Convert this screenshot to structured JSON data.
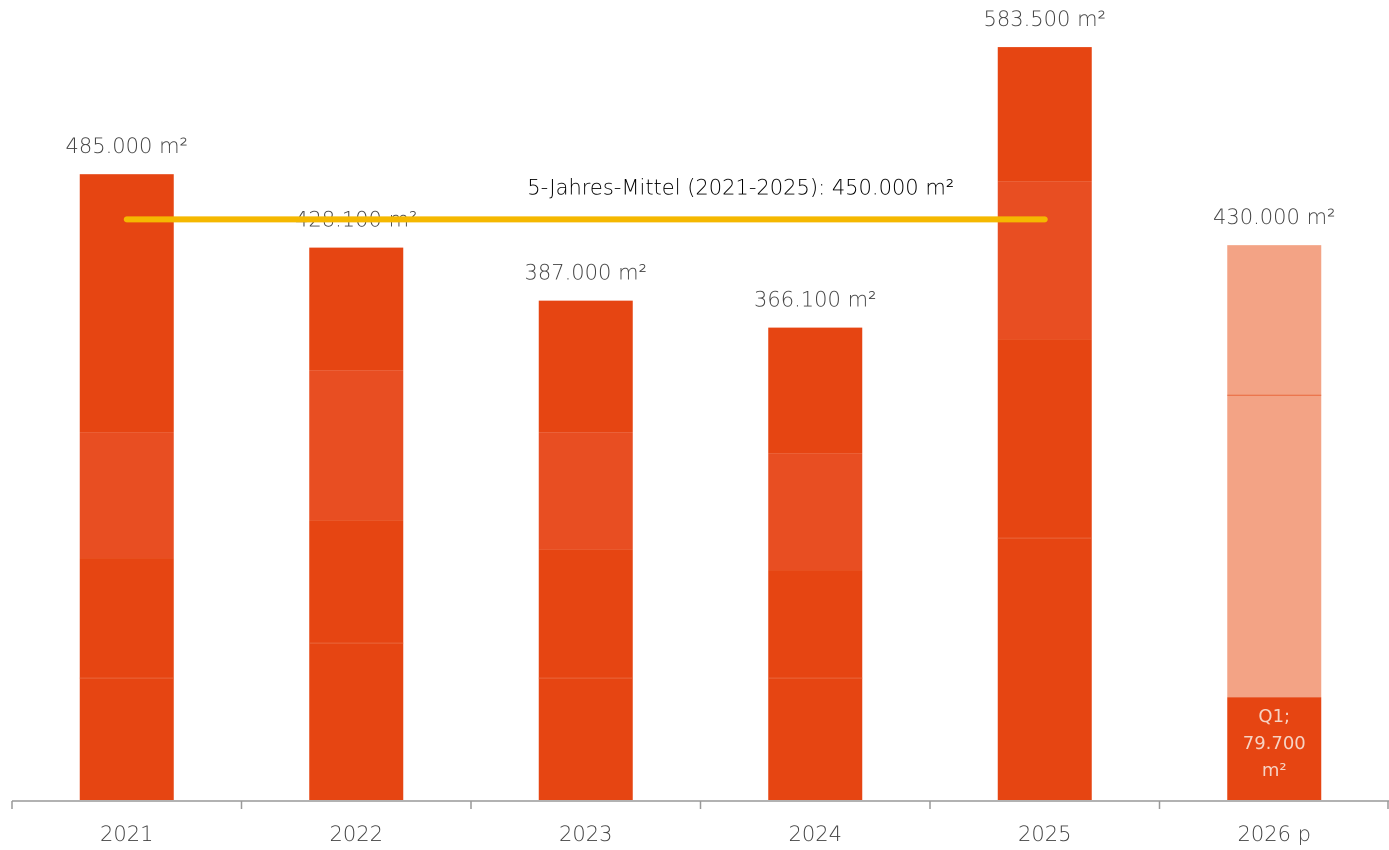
{
  "chart_data": {
    "type": "stacked-bar",
    "categories": [
      "2021",
      "2022",
      "2023",
      "2024",
      "2025",
      "2026 p"
    ],
    "series": [
      {
        "values": [
          94500,
          121600,
          94500,
          94500,
          203000,
          79700
        ],
        "colors": [
          "#e64512",
          "#e64512",
          "#e64512",
          "#e64512",
          "#e64512",
          "#e64512"
        ],
        "value_labels": [
          null,
          null,
          null,
          null,
          null,
          "Q1; 79.700 m²"
        ]
      },
      {
        "values": [
          93000,
          95300,
          99900,
          83700,
          154200,
          234000
        ],
        "colors": [
          "#e64512",
          "#e64512",
          "#e64512",
          "#e64512",
          "#e64512",
          "#f3a385"
        ]
      },
      {
        "values": [
          97600,
          116200,
          90600,
          90600,
          122400,
          116300
        ],
        "colors": [
          "#e84e22",
          "#e84e22",
          "#e84e22",
          "#e84e22",
          "#e84e22",
          "#f3a385"
        ]
      },
      {
        "values": [
          199900,
          95000,
          102000,
          97300,
          103900,
          null
        ],
        "colors": [
          "#e64512",
          "#e64512",
          "#e64512",
          "#e64512",
          "#e64512",
          null
        ]
      }
    ],
    "totals": {
      "values": [
        485000,
        428100,
        387000,
        366100,
        583500,
        430000
      ],
      "value_labels": [
        "485.000 m²",
        "428.100 m²",
        "387.000 m²",
        "366.100 m²",
        "583.500 m²",
        "430.000 m²"
      ]
    },
    "average": {
      "label": "5-Jahres-Mittel (2021-2025): 450.000 m²",
      "value": 450000,
      "color": "#f5b800",
      "from": 0,
      "to": 4
    },
    "ylim": [
      0,
      620000
    ]
  }
}
